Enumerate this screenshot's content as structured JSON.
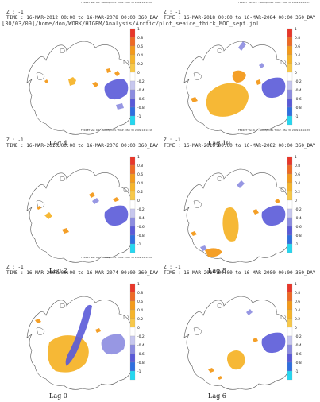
{
  "path_label": "[30/03/09]/home/don/WORK/HIGEM/Analysis/Arctic/plot_seaice_thick_MOC_sept.jnl",
  "colorbar_ticks": [
    "1",
    "0.8",
    "0.6",
    "0.4",
    "0.2",
    "0",
    "-0.2",
    "-0.4",
    "-0.6",
    "-0.8",
    "-1"
  ],
  "colors": {
    "positive_strong": "#e8372a",
    "positive_mid": "#f39a1b",
    "positive_weak": "#f6b42b",
    "negative_weak": "#8c8ce0",
    "negative_mid": "#5a5ad8",
    "negative_strong": "#25d7f0",
    "coastline": "#555555"
  },
  "panels": [
    {
      "id": "lag4",
      "z": "Z : -1",
      "time": "TIME : 16-MAR-2012 00:00 to 16-MAR-2078 00:00 360_DAY",
      "ferret": [
        "FERRET Ver. 6.1",
        "NOAA/PMEL TMAP",
        "Mar 30 2009 14:14:20"
      ],
      "lag": "Lag 4"
    },
    {
      "id": "lag10",
      "z": "Z : -1",
      "time": "TIME : 16-MAR-2018 00:00 to 16-MAR-2084 00:00 360_DAY",
      "ferret": [
        "FERRET Ver. 6.1",
        "NOAA/PMEL TMAP",
        "Mar 30 2009 14:14:37"
      ],
      "lag": "Lag 10"
    },
    {
      "id": "lag2",
      "z": "Z : -1",
      "time": "TIME : 16-MAR-2010 00:00 to 16-MAR-2076 00:00 360_DAY",
      "ferret": [
        "FERRET Ver. 6.1",
        "NOAA/PMEL TMAP",
        "Mar 30 2009 14:14:18"
      ],
      "lag": "Lag 2"
    },
    {
      "id": "lag8",
      "z": "Z : -1",
      "time": "TIME : 16-MAR-2016 00:00 to 16-MAR-2082 00:00 360_DAY",
      "ferret": [
        "FERRET Ver. 6.1",
        "NOAA/PMEL TMAP",
        "Mar 30 2009 14:14:33"
      ],
      "lag": "Lag 8"
    },
    {
      "id": "lag0",
      "z": "Z : -1",
      "time": "TIME : 16-MAR-2008 00:00 to 16-MAR-2074 00:00 360_DAY",
      "ferret": [
        "FERRET Ver. 6.1",
        "NOAA/PMEL TMAP",
        "Mar 30 2009 14:14:22"
      ],
      "lag": "Lag 0"
    },
    {
      "id": "lag6",
      "z": "Z : -1",
      "time": "TIME : 16-MAR-2014 00:00 to 16-MAR-2080 00:00 360_DAY",
      "ferret": [],
      "lag": "Lag 6"
    }
  ],
  "chart_data": {
    "type": "heatmap",
    "description_fields_only_from_image": true,
    "colorbar": {
      "min": -1,
      "max": 1,
      "step": 0.2
    },
    "panels": [
      {
        "lag": "Lag 4",
        "time_start": "16-MAR-2012",
        "time_end": "16-MAR-2078"
      },
      {
        "lag": "Lag 10",
        "time_start": "16-MAR-2018",
        "time_end": "16-MAR-2084"
      },
      {
        "lag": "Lag 2",
        "time_start": "16-MAR-2010",
        "time_end": "16-MAR-2076"
      },
      {
        "lag": "Lag 8",
        "time_start": "16-MAR-2016",
        "time_end": "16-MAR-2082"
      },
      {
        "lag": "Lag 0",
        "time_start": "16-MAR-2008",
        "time_end": "16-MAR-2074"
      },
      {
        "lag": "Lag 6",
        "time_start": "16-MAR-2014",
        "time_end": "16-MAR-2080"
      }
    ]
  }
}
